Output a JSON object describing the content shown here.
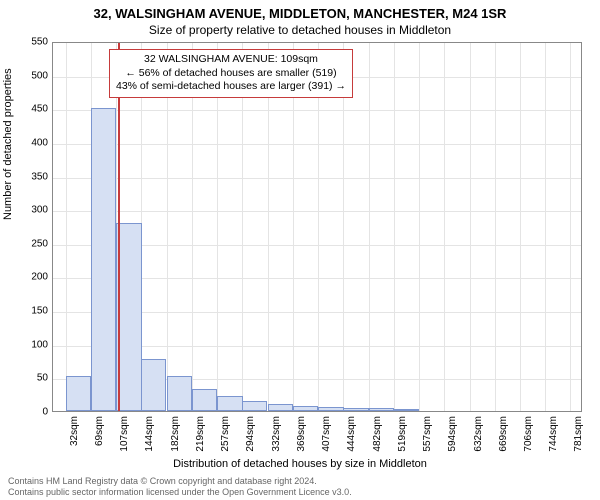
{
  "title_line1": "32, WALSINGHAM AVENUE, MIDDLETON, MANCHESTER, M24 1SR",
  "title_line2": "Size of property relative to detached houses in Middleton",
  "y_axis": {
    "label": "Number of detached properties",
    "min": 0,
    "max": 550,
    "ticks": [
      0,
      50,
      100,
      150,
      200,
      250,
      300,
      350,
      400,
      450,
      500,
      550
    ]
  },
  "x_axis": {
    "label": "Distribution of detached houses by size in Middleton",
    "tick_labels": [
      "32sqm",
      "69sqm",
      "107sqm",
      "144sqm",
      "182sqm",
      "219sqm",
      "257sqm",
      "294sqm",
      "332sqm",
      "369sqm",
      "407sqm",
      "444sqm",
      "482sqm",
      "519sqm",
      "557sqm",
      "594sqm",
      "632sqm",
      "669sqm",
      "706sqm",
      "744sqm",
      "781sqm"
    ],
    "tick_values": [
      32,
      69,
      107,
      144,
      182,
      219,
      257,
      294,
      332,
      369,
      407,
      444,
      482,
      519,
      557,
      594,
      632,
      669,
      706,
      744,
      781
    ]
  },
  "bars": {
    "values": [
      52,
      450,
      280,
      78,
      52,
      32,
      22,
      15,
      10,
      8,
      6,
      5,
      4,
      3,
      0,
      0,
      0,
      0,
      0,
      0
    ],
    "fill_color": "#d6e0f3",
    "border_color": "#7b95cf",
    "width_units": 37.5
  },
  "reference_line": {
    "value": 109,
    "color": "#c63b3b"
  },
  "annotation": {
    "line1": "32 WALSINGHAM AVENUE: 109sqm",
    "line2": "← 56% of detached houses are smaller (519)",
    "line3": "43% of semi-detached houses are larger (391) →",
    "border_color": "#c63b3b"
  },
  "footer": {
    "line1": "Contains HM Land Registry data © Crown copyright and database right 2024.",
    "line2": "Contains public sector information licensed under the Open Government Licence v3.0."
  },
  "style": {
    "background": "#ffffff",
    "grid_color": "#e4e4e4",
    "axis_border_color": "#888888",
    "font_family": "Arial",
    "title_fontsize": 13,
    "subtitle_fontsize": 12,
    "axis_label_fontsize": 11,
    "tick_fontsize": 10,
    "footer_fontsize": 9,
    "footer_color": "#666666"
  },
  "chart_geometry": {
    "x_min": 13,
    "x_max": 800
  }
}
